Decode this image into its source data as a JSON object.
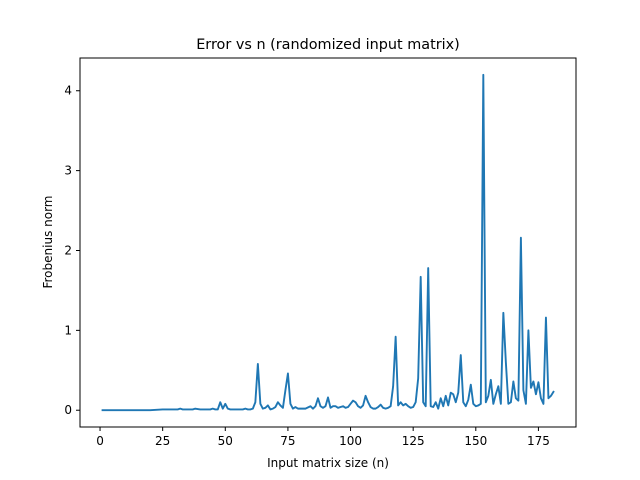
{
  "chart_data": {
    "type": "line",
    "title": "Error vs n (randomized input matrix)",
    "xlabel": "Input matrix size (n)",
    "ylabel": "Frobenius norm",
    "xlim": [
      -8,
      190
    ],
    "ylim": [
      -0.21,
      4.41
    ],
    "xticks": [
      0,
      25,
      50,
      75,
      100,
      125,
      150,
      175
    ],
    "yticks": [
      0,
      1,
      2,
      3,
      4
    ],
    "grid": false,
    "legend": "none",
    "line_color": "#1f77b4",
    "series": [
      {
        "x": [
          1,
          5,
          10,
          15,
          20,
          25,
          28,
          30,
          31,
          32,
          33,
          34,
          35,
          37,
          38,
          40,
          42,
          44,
          45,
          46,
          47,
          48,
          49,
          50,
          51,
          52,
          53,
          55,
          57,
          58,
          59,
          60,
          61,
          62,
          63,
          64,
          65,
          66,
          67,
          68,
          69,
          70,
          71,
          72,
          73,
          74,
          75,
          76,
          77,
          78,
          79,
          80,
          82,
          84,
          85,
          86,
          87,
          88,
          89,
          90,
          91,
          92,
          93,
          94,
          95,
          97,
          98,
          99,
          100,
          101,
          102,
          103,
          104,
          105,
          106,
          107,
          108,
          109,
          110,
          111,
          112,
          113,
          114,
          115,
          116,
          117,
          118,
          119,
          120,
          121,
          122,
          123,
          124,
          125,
          126,
          127,
          128,
          129,
          130,
          131,
          132,
          133,
          134,
          135,
          136,
          137,
          138,
          139,
          140,
          141,
          142,
          143,
          144,
          145,
          146,
          147,
          148,
          149,
          150,
          151,
          152,
          153,
          154,
          155,
          156,
          157,
          158,
          159,
          160,
          161,
          162,
          163,
          164,
          165,
          166,
          167,
          168,
          169,
          170,
          171,
          172,
          173,
          174,
          175,
          176,
          177,
          178,
          179,
          180,
          181
        ],
        "y": [
          0,
          0,
          0,
          0,
          0,
          0.01,
          0.01,
          0.01,
          0.01,
          0.02,
          0.01,
          0.01,
          0.01,
          0.01,
          0.02,
          0.01,
          0.01,
          0.01,
          0.02,
          0.01,
          0.01,
          0.1,
          0.02,
          0.08,
          0.02,
          0.01,
          0.01,
          0.01,
          0.01,
          0.02,
          0.01,
          0.01,
          0.02,
          0.1,
          0.58,
          0.08,
          0.02,
          0.03,
          0.06,
          0.01,
          0.02,
          0.04,
          0.1,
          0.06,
          0.03,
          0.25,
          0.46,
          0.08,
          0.02,
          0.04,
          0.02,
          0.02,
          0.02,
          0.05,
          0.02,
          0.05,
          0.15,
          0.05,
          0.03,
          0.05,
          0.16,
          0.03,
          0.05,
          0.05,
          0.03,
          0.05,
          0.03,
          0.04,
          0.08,
          0.12,
          0.1,
          0.05,
          0.03,
          0.06,
          0.18,
          0.1,
          0.04,
          0.02,
          0.02,
          0.04,
          0.07,
          0.03,
          0.02,
          0.03,
          0.05,
          0.3,
          0.92,
          0.06,
          0.1,
          0.06,
          0.08,
          0.05,
          0.03,
          0.04,
          0.1,
          0.4,
          1.67,
          0.1,
          0.05,
          1.78,
          0.05,
          0.04,
          0.1,
          0.02,
          0.15,
          0.05,
          0.18,
          0.06,
          0.22,
          0.2,
          0.1,
          0.22,
          0.69,
          0.1,
          0.05,
          0.13,
          0.32,
          0.08,
          0.05,
          0.06,
          0.08,
          4.2,
          0.1,
          0.18,
          0.38,
          0.08,
          0.2,
          0.3,
          0.08,
          1.22,
          0.6,
          0.08,
          0.1,
          0.36,
          0.15,
          0.12,
          2.16,
          0.25,
          0.08,
          1.0,
          0.28,
          0.36,
          0.2,
          0.35,
          0.15,
          0.08,
          1.16,
          0.15,
          0.18,
          0.23
        ]
      }
    ]
  }
}
